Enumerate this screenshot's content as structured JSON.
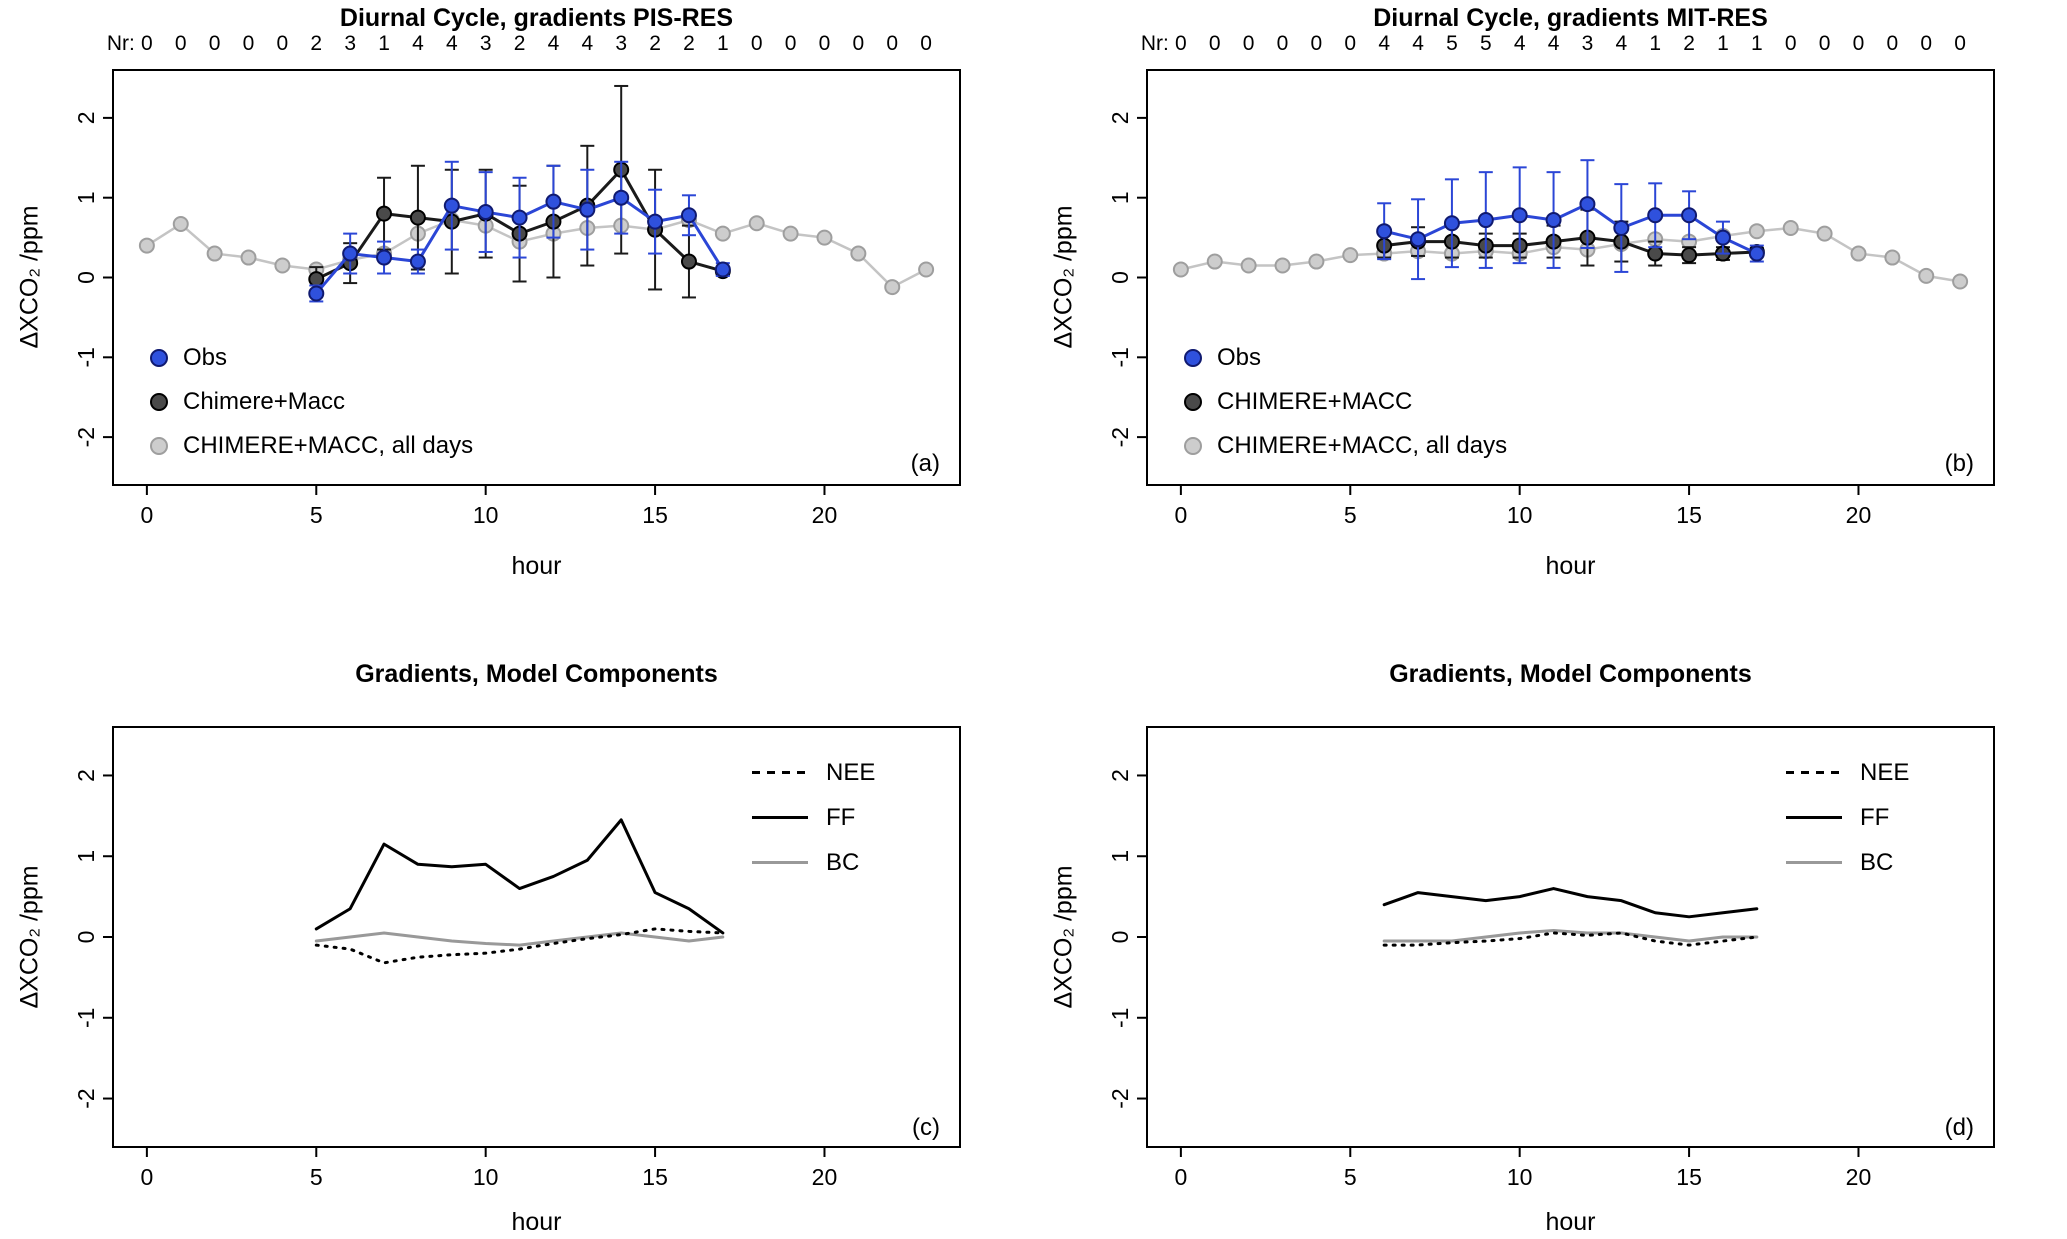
{
  "figure": {
    "background": "#ffffff",
    "text_color": "#000000"
  },
  "chart_data": [
    {
      "id": "a",
      "type": "line",
      "title": "Diurnal Cycle, gradients PIS-RES",
      "xlabel": "hour",
      "ylabel": "ΔXCO₂ /ppm",
      "panel_label": "(a)",
      "xlim": [
        -1,
        24
      ],
      "ylim": [
        -2.6,
        2.6
      ],
      "xticks": [
        0,
        5,
        10,
        15,
        20
      ],
      "yticks": [
        -2,
        -1,
        0,
        1,
        2
      ],
      "grid": false,
      "nr_prefix": "Nr:",
      "nr_counts": [
        0,
        0,
        0,
        0,
        0,
        2,
        3,
        1,
        4,
        4,
        3,
        2,
        4,
        4,
        3,
        2,
        2,
        1,
        0,
        0,
        0,
        0,
        0,
        0
      ],
      "series": [
        {
          "name": "CHIMERE+MACC, all days",
          "line_color": "#c4c4c4",
          "line_width": 2.5,
          "marker_fill": "#cdcdcd",
          "marker_stroke": "#9e9e9e",
          "x": [
            0,
            1,
            2,
            3,
            4,
            5,
            6,
            7,
            8,
            9,
            10,
            11,
            12,
            13,
            14,
            15,
            16,
            17,
            18,
            19,
            20,
            21,
            22,
            23
          ],
          "y": [
            0.4,
            0.67,
            0.3,
            0.25,
            0.15,
            0.1,
            0.22,
            0.3,
            0.55,
            0.72,
            0.65,
            0.45,
            0.55,
            0.62,
            0.65,
            0.6,
            0.72,
            0.55,
            0.68,
            0.55,
            0.5,
            0.3,
            -0.12,
            0.1
          ]
        },
        {
          "name": "Chimere+Macc",
          "line_color": "#1a1a1a",
          "line_width": 3,
          "marker_fill": "#4a4a4a",
          "marker_stroke": "#000000",
          "error_color": "#1a1a1a",
          "x": [
            5,
            6,
            7,
            8,
            9,
            10,
            11,
            12,
            13,
            14,
            15,
            16,
            17
          ],
          "y": [
            -0.02,
            0.18,
            0.8,
            0.75,
            0.7,
            0.8,
            0.55,
            0.7,
            0.9,
            1.35,
            0.6,
            0.2,
            0.08
          ],
          "yerr": [
            0.15,
            0.25,
            0.45,
            0.65,
            0.65,
            0.55,
            0.6,
            0.7,
            0.75,
            1.05,
            0.75,
            0.45,
            0.05
          ]
        },
        {
          "name": "Obs",
          "line_color": "#2b46d6",
          "line_width": 3,
          "marker_fill": "#2f51dd",
          "marker_stroke": "#101a70",
          "error_color": "#2b46d6",
          "x": [
            5,
            6,
            7,
            8,
            9,
            10,
            11,
            12,
            13,
            14,
            15,
            16,
            17
          ],
          "y": [
            -0.2,
            0.3,
            0.25,
            0.2,
            0.9,
            0.82,
            0.75,
            0.95,
            0.85,
            1.0,
            0.7,
            0.78,
            0.1
          ],
          "yerr": [
            0.1,
            0.25,
            0.2,
            0.15,
            0.55,
            0.5,
            0.5,
            0.45,
            0.5,
            0.45,
            0.4,
            0.25,
            0.08
          ]
        }
      ],
      "legend": {
        "position": "bottom-left",
        "items": [
          {
            "label": "Obs",
            "swatch": "circle",
            "fill": "#2f51dd",
            "stroke": "#101a70"
          },
          {
            "label": "Chimere+Macc",
            "swatch": "circle",
            "fill": "#4a4a4a",
            "stroke": "#000000"
          },
          {
            "label": "CHIMERE+MACC, all days",
            "swatch": "circle",
            "fill": "#cdcdcd",
            "stroke": "#9e9e9e"
          }
        ]
      }
    },
    {
      "id": "b",
      "type": "line",
      "title": "Diurnal Cycle, gradients MIT-RES",
      "xlabel": "hour",
      "ylabel": "ΔXCO₂ /ppm",
      "panel_label": "(b)",
      "xlim": [
        -1,
        24
      ],
      "ylim": [
        -2.6,
        2.6
      ],
      "xticks": [
        0,
        5,
        10,
        15,
        20
      ],
      "yticks": [
        -2,
        -1,
        0,
        1,
        2
      ],
      "grid": false,
      "nr_prefix": "Nr:",
      "nr_counts": [
        0,
        0,
        0,
        0,
        0,
        0,
        4,
        4,
        5,
        5,
        4,
        4,
        3,
        4,
        1,
        2,
        1,
        1,
        0,
        0,
        0,
        0,
        0,
        0
      ],
      "series": [
        {
          "name": "CHIMERE+MACC, all days",
          "line_color": "#c4c4c4",
          "line_width": 2.5,
          "marker_fill": "#cdcdcd",
          "marker_stroke": "#9e9e9e",
          "x": [
            0,
            1,
            2,
            3,
            4,
            5,
            6,
            7,
            8,
            9,
            10,
            11,
            12,
            13,
            14,
            15,
            16,
            17,
            18,
            19,
            20,
            21,
            22,
            23
          ],
          "y": [
            0.1,
            0.2,
            0.15,
            0.15,
            0.2,
            0.28,
            0.3,
            0.33,
            0.3,
            0.33,
            0.3,
            0.38,
            0.35,
            0.42,
            0.48,
            0.45,
            0.52,
            0.58,
            0.62,
            0.55,
            0.3,
            0.25,
            0.02,
            -0.05
          ]
        },
        {
          "name": "CHIMERE+MACC",
          "line_color": "#1a1a1a",
          "line_width": 3,
          "marker_fill": "#4a4a4a",
          "marker_stroke": "#000000",
          "error_color": "#1a1a1a",
          "x": [
            6,
            7,
            8,
            9,
            10,
            11,
            12,
            13,
            14,
            15,
            16,
            17
          ],
          "y": [
            0.4,
            0.45,
            0.45,
            0.4,
            0.4,
            0.45,
            0.5,
            0.45,
            0.3,
            0.28,
            0.3,
            0.32
          ],
          "yerr": [
            0.15,
            0.18,
            0.2,
            0.15,
            0.15,
            0.2,
            0.35,
            0.25,
            0.15,
            0.1,
            0.08,
            0.05
          ]
        },
        {
          "name": "Obs",
          "line_color": "#2b46d6",
          "line_width": 3,
          "marker_fill": "#2f51dd",
          "marker_stroke": "#101a70",
          "error_color": "#2b46d6",
          "x": [
            6,
            7,
            8,
            9,
            10,
            11,
            12,
            13,
            14,
            15,
            16,
            17
          ],
          "y": [
            0.58,
            0.48,
            0.68,
            0.72,
            0.78,
            0.72,
            0.92,
            0.62,
            0.78,
            0.78,
            0.5,
            0.3
          ],
          "yerr": [
            0.35,
            0.5,
            0.55,
            0.6,
            0.6,
            0.6,
            0.55,
            0.55,
            0.4,
            0.3,
            0.2,
            0.1
          ]
        }
      ],
      "legend": {
        "position": "bottom-left",
        "items": [
          {
            "label": "Obs",
            "swatch": "circle",
            "fill": "#2f51dd",
            "stroke": "#101a70"
          },
          {
            "label": "CHIMERE+MACC",
            "swatch": "circle",
            "fill": "#4a4a4a",
            "stroke": "#000000"
          },
          {
            "label": "CHIMERE+MACC, all days",
            "swatch": "circle",
            "fill": "#cdcdcd",
            "stroke": "#9e9e9e"
          }
        ]
      }
    },
    {
      "id": "c",
      "type": "line",
      "title": "Gradients, Model Components",
      "xlabel": "hour",
      "ylabel": "ΔXCO₂ /ppm",
      "panel_label": "(c)",
      "xlim": [
        -1,
        24
      ],
      "ylim": [
        -2.6,
        2.6
      ],
      "xticks": [
        0,
        5,
        10,
        15,
        20
      ],
      "yticks": [
        -2,
        -1,
        0,
        1,
        2
      ],
      "grid": false,
      "series": [
        {
          "name": "BC",
          "line_color": "#999999",
          "line_width": 3,
          "x": [
            5,
            6,
            7,
            8,
            9,
            10,
            11,
            12,
            13,
            14,
            15,
            16,
            17
          ],
          "y": [
            -0.05,
            0.0,
            0.05,
            0.0,
            -0.05,
            -0.08,
            -0.1,
            -0.05,
            0.0,
            0.05,
            0.0,
            -0.05,
            0.0
          ]
        },
        {
          "name": "NEE",
          "line_color": "#000000",
          "line_width": 3,
          "dash": "2 7",
          "x": [
            5,
            6,
            7,
            8,
            9,
            10,
            11,
            12,
            13,
            14,
            15,
            16,
            17
          ],
          "y": [
            -0.1,
            -0.15,
            -0.32,
            -0.25,
            -0.22,
            -0.2,
            -0.15,
            -0.08,
            -0.02,
            0.03,
            0.1,
            0.07,
            0.05
          ]
        },
        {
          "name": "FF",
          "line_color": "#000000",
          "line_width": 3,
          "x": [
            5,
            6,
            7,
            8,
            9,
            10,
            11,
            12,
            13,
            14,
            15,
            16,
            17
          ],
          "y": [
            0.1,
            0.35,
            1.15,
            0.9,
            0.87,
            0.9,
            0.6,
            0.75,
            0.95,
            1.45,
            0.55,
            0.35,
            0.05
          ]
        }
      ],
      "legend": {
        "position": "top-right",
        "items": [
          {
            "label": "NEE",
            "swatch": "dashed-line",
            "color": "#000000"
          },
          {
            "label": "FF",
            "swatch": "line",
            "color": "#000000"
          },
          {
            "label": "BC",
            "swatch": "line",
            "color": "#999999"
          }
        ]
      }
    },
    {
      "id": "d",
      "type": "line",
      "title": "Gradients, Model Components",
      "xlabel": "hour",
      "ylabel": "ΔXCO₂ /ppm",
      "panel_label": "(d)",
      "xlim": [
        -1,
        24
      ],
      "ylim": [
        -2.6,
        2.6
      ],
      "xticks": [
        0,
        5,
        10,
        15,
        20
      ],
      "yticks": [
        -2,
        -1,
        0,
        1,
        2
      ],
      "grid": false,
      "series": [
        {
          "name": "BC",
          "line_color": "#999999",
          "line_width": 3,
          "x": [
            6,
            7,
            8,
            9,
            10,
            11,
            12,
            13,
            14,
            15,
            16,
            17
          ],
          "y": [
            -0.05,
            -0.05,
            -0.05,
            0.0,
            0.05,
            0.08,
            0.05,
            0.05,
            0.0,
            -0.05,
            0.0,
            0.0
          ]
        },
        {
          "name": "NEE",
          "line_color": "#000000",
          "line_width": 3,
          "dash": "2 7",
          "x": [
            6,
            7,
            8,
            9,
            10,
            11,
            12,
            13,
            14,
            15,
            16,
            17
          ],
          "y": [
            -0.1,
            -0.1,
            -0.07,
            -0.05,
            -0.02,
            0.05,
            0.02,
            0.05,
            -0.05,
            -0.1,
            -0.05,
            0.0
          ]
        },
        {
          "name": "FF",
          "line_color": "#000000",
          "line_width": 3,
          "x": [
            6,
            7,
            8,
            9,
            10,
            11,
            12,
            13,
            14,
            15,
            16,
            17
          ],
          "y": [
            0.4,
            0.55,
            0.5,
            0.45,
            0.5,
            0.6,
            0.5,
            0.45,
            0.3,
            0.25,
            0.3,
            0.35
          ]
        }
      ],
      "legend": {
        "position": "top-right",
        "items": [
          {
            "label": "NEE",
            "swatch": "dashed-line",
            "color": "#000000"
          },
          {
            "label": "FF",
            "swatch": "line",
            "color": "#000000"
          },
          {
            "label": "BC",
            "swatch": "line",
            "color": "#999999"
          }
        ]
      }
    }
  ]
}
